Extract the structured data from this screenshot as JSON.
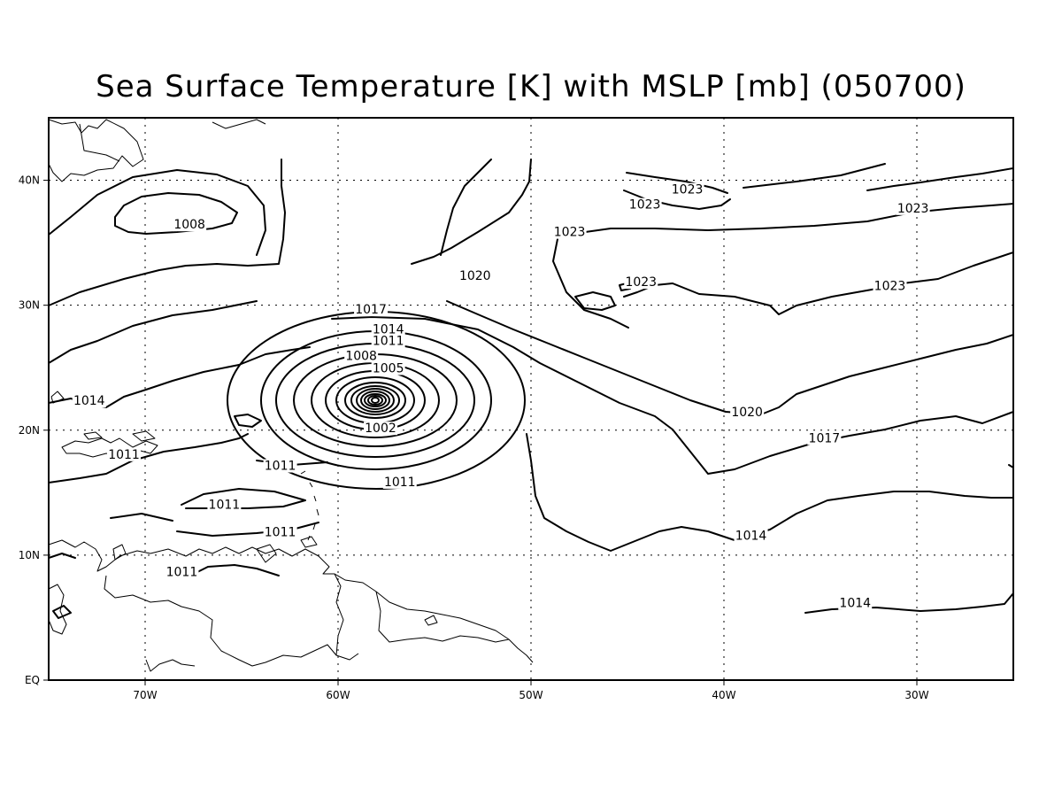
{
  "title": "Sea Surface Temperature [K] with MSLP [mb] (050700)",
  "map": {
    "type": "contour_map",
    "region": "North Atlantic",
    "lon_range": [
      -75,
      -25
    ],
    "lat_range": [
      0,
      45
    ],
    "x_ticks": [
      {
        "value": -70,
        "label": "70W"
      },
      {
        "value": -60,
        "label": "60W"
      },
      {
        "value": -50,
        "label": "50W"
      },
      {
        "value": -40,
        "label": "40W"
      },
      {
        "value": -30,
        "label": "30W"
      }
    ],
    "y_ticks": [
      {
        "value": 0,
        "label": "EQ"
      },
      {
        "value": 10,
        "label": "10N"
      },
      {
        "value": 20,
        "label": "20N"
      },
      {
        "value": 30,
        "label": "30N"
      },
      {
        "value": 40,
        "label": "40N"
      }
    ],
    "grid": true,
    "contour_labels": [
      {
        "text": "1008",
        "lon": -67.7,
        "lat": 36.2
      },
      {
        "text": "1020",
        "lon": -52.9,
        "lat": 32.1
      },
      {
        "text": "1023",
        "lon": -41.9,
        "lat": 39.0
      },
      {
        "text": "1023",
        "lon": -44.1,
        "lat": 37.8
      },
      {
        "text": "1023",
        "lon": -30.2,
        "lat": 37.5
      },
      {
        "text": "1023",
        "lon": -48.0,
        "lat": 35.6
      },
      {
        "text": "1023",
        "lon": -44.3,
        "lat": 31.6
      },
      {
        "text": "1023",
        "lon": -31.4,
        "lat": 31.3
      },
      {
        "text": "1017",
        "lon": -58.3,
        "lat": 29.4
      },
      {
        "text": "1014",
        "lon": -57.4,
        "lat": 27.8
      },
      {
        "text": "1011",
        "lon": -57.4,
        "lat": 26.9
      },
      {
        "text": "1008",
        "lon": -58.8,
        "lat": 25.7
      },
      {
        "text": "1005",
        "lon": -57.4,
        "lat": 24.7
      },
      {
        "text": "1002",
        "lon": -57.8,
        "lat": 19.9
      },
      {
        "text": "1014",
        "lon": -72.9,
        "lat": 22.1
      },
      {
        "text": "1020",
        "lon": -38.8,
        "lat": 21.2
      },
      {
        "text": "1017",
        "lon": -34.8,
        "lat": 19.1
      },
      {
        "text": "1011",
        "lon": -71.1,
        "lat": 17.8
      },
      {
        "text": "1011",
        "lon": -63.0,
        "lat": 16.9
      },
      {
        "text": "1011",
        "lon": -56.8,
        "lat": 15.6
      },
      {
        "text": "1011",
        "lon": -65.9,
        "lat": 13.8
      },
      {
        "text": "1011",
        "lon": -63.0,
        "lat": 11.6
      },
      {
        "text": "1014",
        "lon": -38.6,
        "lat": 11.3
      },
      {
        "text": "1011",
        "lon": -68.1,
        "lat": 8.4
      },
      {
        "text": "1014",
        "lon": -33.2,
        "lat": 5.9
      }
    ]
  }
}
